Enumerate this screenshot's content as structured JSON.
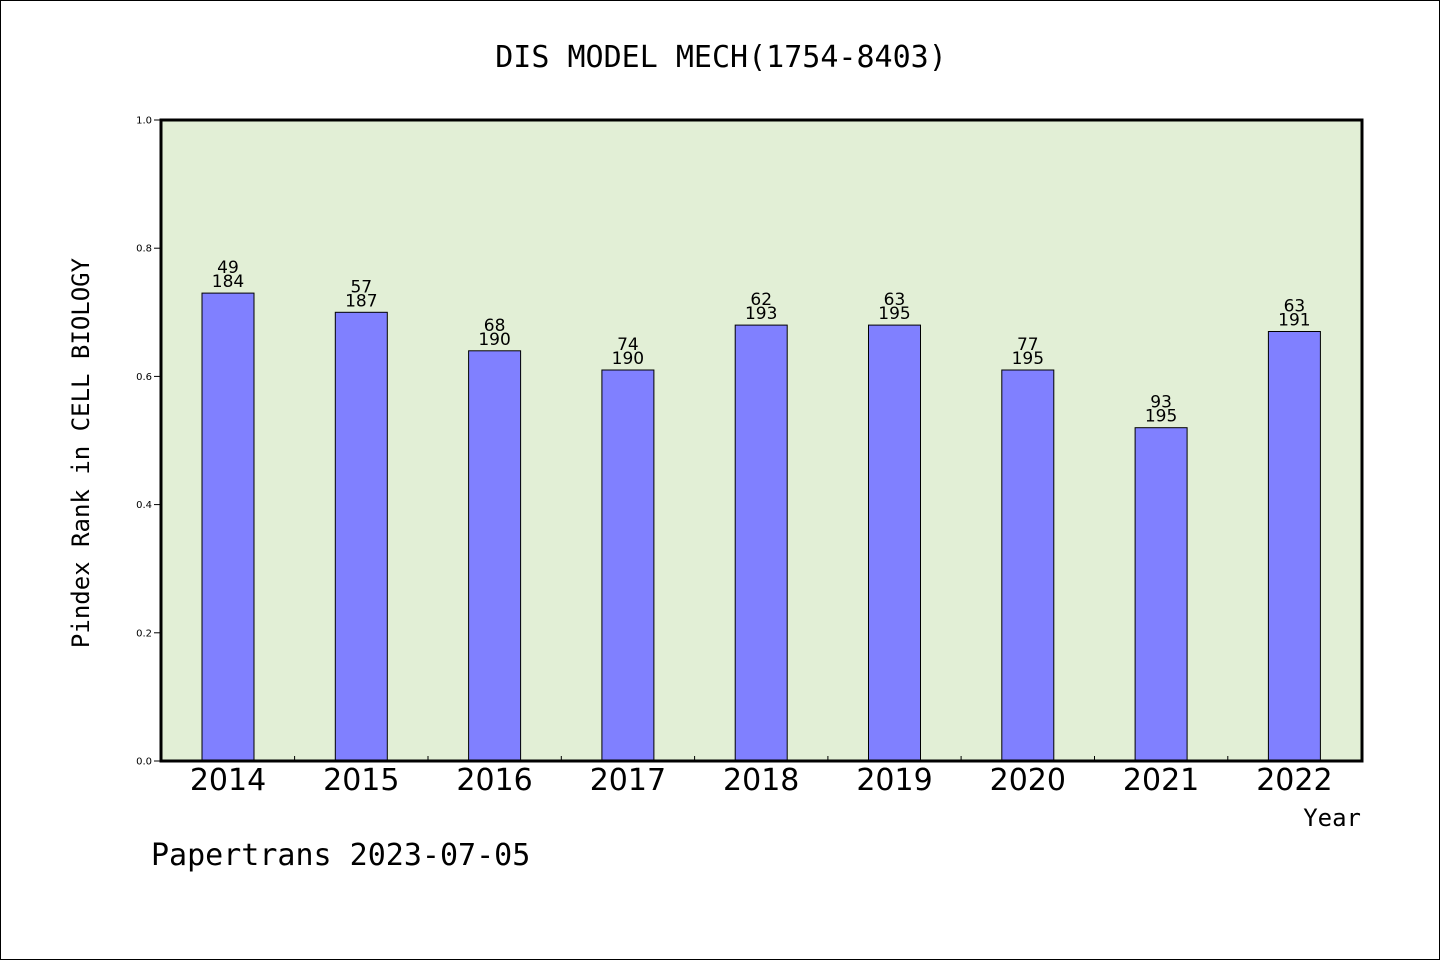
{
  "chart_data": {
    "type": "bar",
    "title": "DIS MODEL MECH(1754-8403)",
    "xlabel": "Year",
    "ylabel": "Pindex Rank in CELL BIOLOGY",
    "ylim": [
      0.0,
      1.0
    ],
    "yticks": [
      "0.0",
      "0.2",
      "0.4",
      "0.6",
      "0.8",
      "1.0"
    ],
    "categories": [
      "2014",
      "2015",
      "2016",
      "2017",
      "2018",
      "2019",
      "2020",
      "2021",
      "2022"
    ],
    "values": [
      0.73,
      0.7,
      0.64,
      0.61,
      0.68,
      0.68,
      0.61,
      0.52,
      0.67
    ],
    "labels_top": [
      "49",
      "57",
      "68",
      "74",
      "62",
      "63",
      "77",
      "93",
      "63"
    ],
    "labels_bottom": [
      "184",
      "187",
      "190",
      "190",
      "193",
      "195",
      "195",
      "195",
      "191"
    ],
    "grid": false,
    "legend": "none",
    "colors": {
      "bar": "#8080ff",
      "plot_background": "#e2efd6",
      "axis": "#000000"
    }
  },
  "footer": "Papertrans 2023-07-05"
}
